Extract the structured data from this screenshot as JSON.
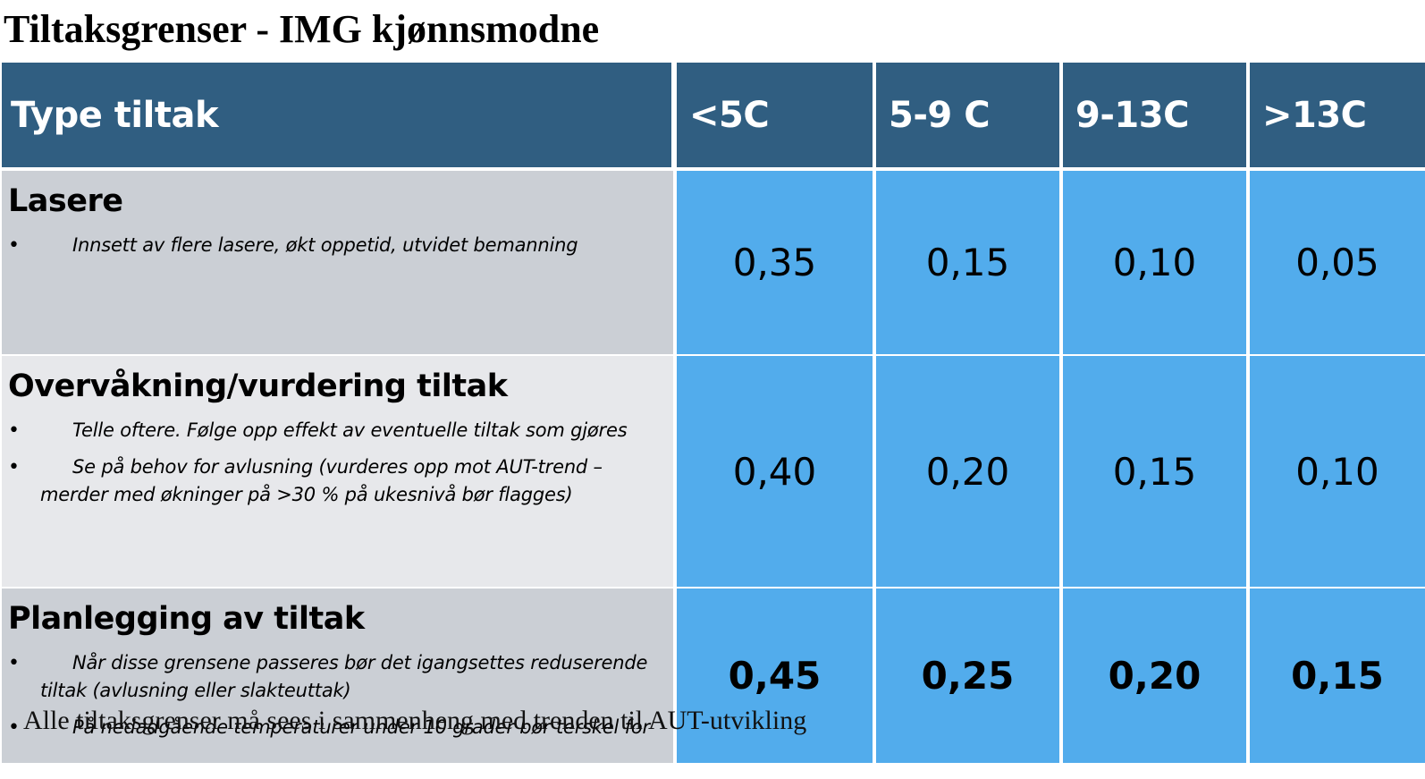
{
  "title": "Tiltaksgrenser - IMG kjønnsmodne",
  "colors": {
    "header_bg": "#305e81",
    "value_bg": "#52acec",
    "row_bg_a": "#cbcfd5",
    "row_bg_b": "#e7e8eb"
  },
  "table": {
    "headers": [
      "Type tiltak",
      "<5C",
      "5-9 C",
      "9-13C",
      ">13C"
    ],
    "rows": [
      {
        "heading": "Lasere",
        "bullets": [
          "Innsett av flere lasere, økt oppetid, utvidet bemanning"
        ],
        "values": [
          "0,35",
          "0,15",
          "0,10",
          "0,05"
        ]
      },
      {
        "heading": "Overvåkning/vurdering tiltak",
        "bullets": [
          "Telle oftere. Følge opp effekt av eventuelle tiltak som gjøres",
          "Se på behov for avlusning (vurderes opp mot AUT-trend – merder med økninger på >30 % på ukesnivå bør flagges)"
        ],
        "values": [
          "0,40",
          "0,20",
          "0,15",
          "0,10"
        ]
      },
      {
        "heading": "Planlegging av tiltak",
        "bullets": [
          "Når disse grensene passeres bør det igangsettes reduserende tiltak (avlusning eller slakteuttak)",
          "På nedadgående temperaturer under 10 grader bør terskel for"
        ],
        "values": [
          "0,45",
          "0,25",
          "0,20",
          "0,15"
        ]
      }
    ]
  },
  "note": "Alle tiltaksgrenser må sees i sammenheng med trenden til AUT-utvikling"
}
